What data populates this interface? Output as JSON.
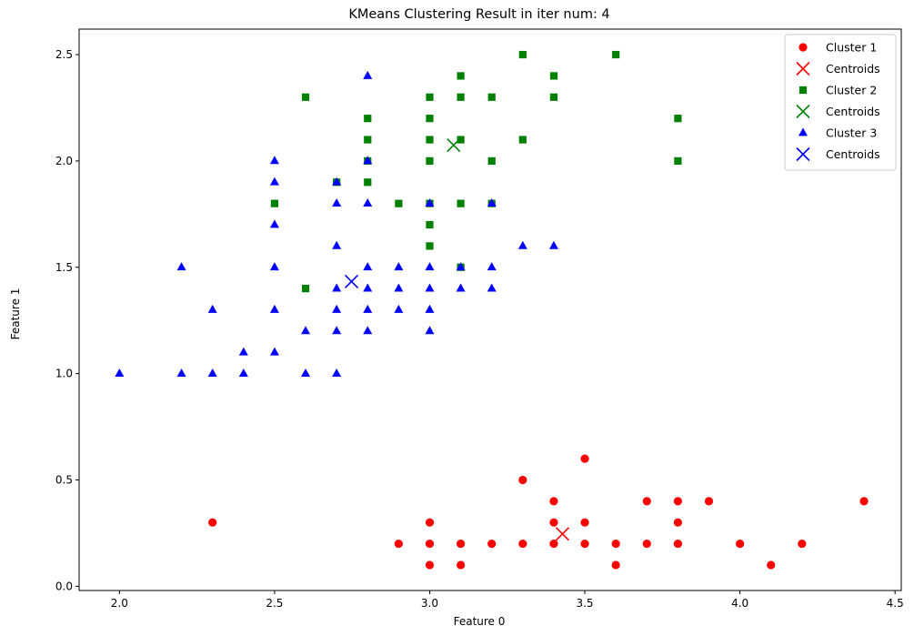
{
  "chart_data": {
    "type": "scatter",
    "title": "KMeans Clustering Result in iter num: 4",
    "xlabel": "Feature 0",
    "ylabel": "Feature 1",
    "xlim": [
      1.87,
      4.52
    ],
    "ylim": [
      -0.02,
      2.62
    ],
    "xticks": [
      "2.0",
      "2.5",
      "3.0",
      "3.5",
      "4.0",
      "4.5"
    ],
    "yticks": [
      "0.0",
      "0.5",
      "1.0",
      "1.5",
      "2.0",
      "2.5"
    ],
    "grid": false,
    "legend_position": "top-right",
    "series": [
      {
        "name": "Cluster 1",
        "marker": "circle",
        "color": "#ff0000",
        "points": [
          [
            2.3,
            0.3
          ],
          [
            2.9,
            0.2
          ],
          [
            3.0,
            0.1
          ],
          [
            3.0,
            0.2
          ],
          [
            3.0,
            0.3
          ],
          [
            3.1,
            0.1
          ],
          [
            3.1,
            0.2
          ],
          [
            3.2,
            0.2
          ],
          [
            3.3,
            0.5
          ],
          [
            3.3,
            0.2
          ],
          [
            3.4,
            0.2
          ],
          [
            3.4,
            0.3
          ],
          [
            3.4,
            0.4
          ],
          [
            3.5,
            0.6
          ],
          [
            3.5,
            0.3
          ],
          [
            3.5,
            0.2
          ],
          [
            3.6,
            0.2
          ],
          [
            3.6,
            0.1
          ],
          [
            3.7,
            0.4
          ],
          [
            3.7,
            0.2
          ],
          [
            3.8,
            0.4
          ],
          [
            3.8,
            0.3
          ],
          [
            3.8,
            0.2
          ],
          [
            3.9,
            0.4
          ],
          [
            4.0,
            0.2
          ],
          [
            4.1,
            0.1
          ],
          [
            4.2,
            0.2
          ],
          [
            4.4,
            0.4
          ]
        ]
      },
      {
        "name": "Centroids",
        "marker": "x",
        "color": "#ff0000",
        "points": [
          [
            3.428,
            0.246
          ]
        ]
      },
      {
        "name": "Cluster 2",
        "marker": "square",
        "color": "#008000",
        "points": [
          [
            2.5,
            1.8
          ],
          [
            2.6,
            2.3
          ],
          [
            2.6,
            1.4
          ],
          [
            2.7,
            1.9
          ],
          [
            2.8,
            2.2
          ],
          [
            2.8,
            2.1
          ],
          [
            2.8,
            2.0
          ],
          [
            2.8,
            1.9
          ],
          [
            2.9,
            1.8
          ],
          [
            3.0,
            2.3
          ],
          [
            3.0,
            2.2
          ],
          [
            3.0,
            2.1
          ],
          [
            3.0,
            2.0
          ],
          [
            3.0,
            1.8
          ],
          [
            3.0,
            1.7
          ],
          [
            3.0,
            1.6
          ],
          [
            3.1,
            2.4
          ],
          [
            3.1,
            2.3
          ],
          [
            3.1,
            2.1
          ],
          [
            3.1,
            1.8
          ],
          [
            3.1,
            1.5
          ],
          [
            3.2,
            2.3
          ],
          [
            3.2,
            2.0
          ],
          [
            3.2,
            1.8
          ],
          [
            3.3,
            2.5
          ],
          [
            3.3,
            2.1
          ],
          [
            3.4,
            2.4
          ],
          [
            3.4,
            2.3
          ],
          [
            3.6,
            2.5
          ],
          [
            3.8,
            2.2
          ],
          [
            3.8,
            2.0
          ]
        ]
      },
      {
        "name": "Centroids",
        "marker": "x",
        "color": "#008000",
        "points": [
          [
            3.077,
            2.074
          ]
        ]
      },
      {
        "name": "Cluster 3",
        "marker": "triangle",
        "color": "#0000ff",
        "points": [
          [
            2.0,
            1.0
          ],
          [
            2.2,
            1.5
          ],
          [
            2.2,
            1.0
          ],
          [
            2.3,
            1.3
          ],
          [
            2.3,
            1.0
          ],
          [
            2.4,
            1.1
          ],
          [
            2.4,
            1.0
          ],
          [
            2.5,
            2.0
          ],
          [
            2.5,
            1.9
          ],
          [
            2.5,
            1.7
          ],
          [
            2.5,
            1.5
          ],
          [
            2.5,
            1.3
          ],
          [
            2.5,
            1.1
          ],
          [
            2.6,
            1.2
          ],
          [
            2.6,
            1.0
          ],
          [
            2.7,
            1.9
          ],
          [
            2.7,
            1.8
          ],
          [
            2.7,
            1.6
          ],
          [
            2.7,
            1.4
          ],
          [
            2.7,
            1.3
          ],
          [
            2.7,
            1.2
          ],
          [
            2.7,
            1.0
          ],
          [
            2.8,
            2.4
          ],
          [
            2.8,
            2.0
          ],
          [
            2.8,
            1.8
          ],
          [
            2.8,
            1.5
          ],
          [
            2.8,
            1.4
          ],
          [
            2.8,
            1.3
          ],
          [
            2.8,
            1.2
          ],
          [
            2.9,
            1.5
          ],
          [
            2.9,
            1.4
          ],
          [
            2.9,
            1.3
          ],
          [
            3.0,
            1.8
          ],
          [
            3.0,
            1.5
          ],
          [
            3.0,
            1.4
          ],
          [
            3.0,
            1.3
          ],
          [
            3.0,
            1.2
          ],
          [
            3.1,
            1.5
          ],
          [
            3.1,
            1.4
          ],
          [
            3.2,
            1.8
          ],
          [
            3.2,
            1.5
          ],
          [
            3.2,
            1.4
          ],
          [
            3.3,
            1.6
          ],
          [
            3.4,
            1.6
          ]
        ]
      },
      {
        "name": "Centroids",
        "marker": "x",
        "color": "#0000ff",
        "points": [
          [
            2.748,
            1.433
          ]
        ]
      }
    ]
  }
}
